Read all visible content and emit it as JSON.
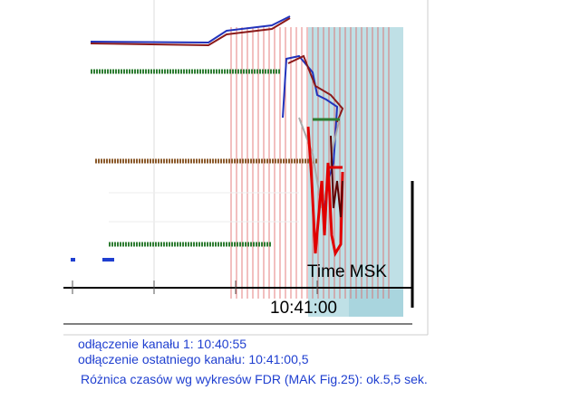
{
  "plot": {
    "axis_label": "Time MSK",
    "tick_label": "10:41:00"
  },
  "captions": [
    "odłączenie kanału 1: 10:40:55",
    "odłączenie ostatniego kanału: 10:41:00,5",
    "Różnica czasów wg wykresów FDR (MAK Fig.25): ok.5,5 sek."
  ]
}
